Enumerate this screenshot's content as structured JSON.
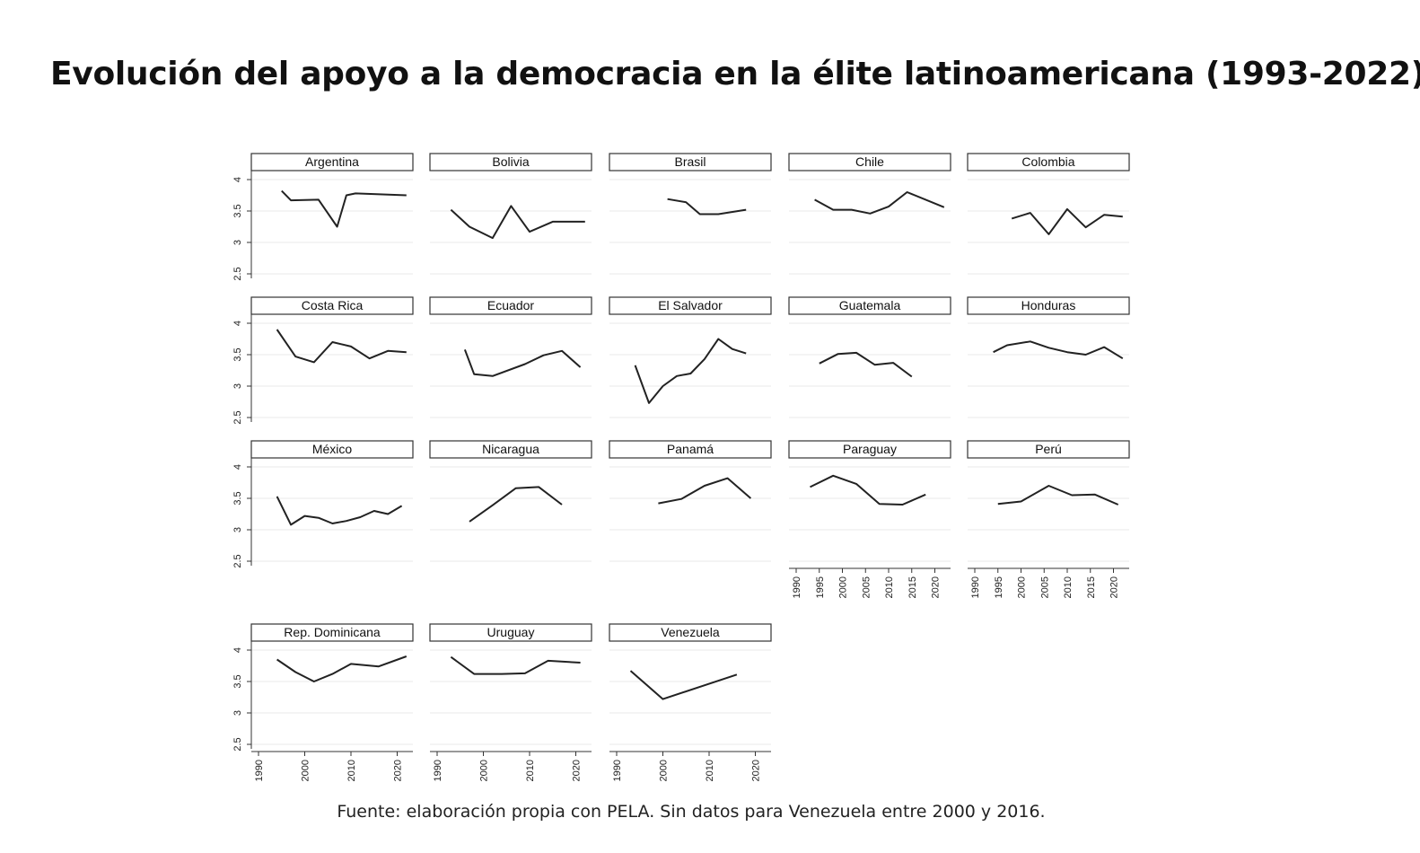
{
  "title": "Evolución del apoyo a la democracia en la élite latinoamericana (1993-2022)",
  "source_note": "Fuente: elaboración propia con PELA. Sin datos para Venezuela entre 2000 y 2016.",
  "chart_data": {
    "type": "line",
    "layout": "small-multiples",
    "xlim": [
      1988,
      2025
    ],
    "ylim": [
      2.5,
      4.1
    ],
    "x_ticks": [
      1990,
      2000,
      2010,
      2020
    ],
    "x_ticks_fine": [
      1990,
      1995,
      2000,
      2005,
      2010,
      2015,
      2020
    ],
    "y_ticks": [
      2.5,
      3,
      3.5,
      4
    ],
    "y_tick_labels": [
      "2.5",
      "3",
      "3.5",
      "4"
    ],
    "x_tick_labels": [
      "1990",
      "2000",
      "2010",
      "2020"
    ],
    "x_tick_labels_fine": [
      "1990",
      "1995",
      "2000",
      "2005",
      "2010",
      "2015",
      "2020"
    ],
    "grid": true,
    "line_color": "#222222",
    "panels": [
      {
        "name": "Argentina",
        "x": [
          1995,
          1997,
          2003,
          2007,
          2009,
          2011,
          2022
        ],
        "y": [
          3.82,
          3.67,
          3.68,
          3.25,
          3.75,
          3.78,
          3.75
        ]
      },
      {
        "name": "Bolivia",
        "x": [
          1993,
          1997,
          2002,
          2006,
          2010,
          2015,
          2022
        ],
        "y": [
          3.52,
          3.25,
          3.07,
          3.58,
          3.17,
          3.33,
          3.33
        ]
      },
      {
        "name": "Brasil",
        "x": [
          2001,
          2005,
          2008,
          2012,
          2018
        ],
        "y": [
          3.69,
          3.64,
          3.45,
          3.45,
          3.52
        ]
      },
      {
        "name": "Chile",
        "x": [
          1994,
          1998,
          2002,
          2006,
          2010,
          2014,
          2022
        ],
        "y": [
          3.68,
          3.52,
          3.52,
          3.46,
          3.57,
          3.8,
          3.56
        ]
      },
      {
        "name": "Colombia",
        "x": [
          1998,
          2002,
          2006,
          2010,
          2014,
          2018,
          2022
        ],
        "y": [
          3.38,
          3.47,
          3.13,
          3.53,
          3.24,
          3.44,
          3.41
        ]
      },
      {
        "name": "Costa Rica",
        "x": [
          1994,
          1998,
          2002,
          2006,
          2010,
          2014,
          2018,
          2022
        ],
        "y": [
          3.9,
          3.47,
          3.38,
          3.7,
          3.63,
          3.44,
          3.56,
          3.54
        ]
      },
      {
        "name": "Ecuador",
        "x": [
          1996,
          1998,
          2002,
          2009,
          2013,
          2017,
          2021
        ],
        "y": [
          3.58,
          3.19,
          3.16,
          3.35,
          3.49,
          3.56,
          3.3
        ]
      },
      {
        "name": "El Salvador",
        "x": [
          1994,
          1997,
          2000,
          2003,
          2006,
          2009,
          2012,
          2015,
          2018
        ],
        "y": [
          3.33,
          2.73,
          3.0,
          3.16,
          3.2,
          3.43,
          3.75,
          3.59,
          3.52
        ]
      },
      {
        "name": "Guatemala",
        "x": [
          1995,
          1999,
          2003,
          2007,
          2011,
          2015
        ],
        "y": [
          3.36,
          3.51,
          3.53,
          3.34,
          3.37,
          3.15
        ]
      },
      {
        "name": "Honduras",
        "x": [
          1994,
          1997,
          2002,
          2006,
          2010,
          2014,
          2018,
          2022
        ],
        "y": [
          3.54,
          3.65,
          3.71,
          3.61,
          3.54,
          3.5,
          3.62,
          3.44
        ]
      },
      {
        "name": "México",
        "x": [
          1994,
          1997,
          2000,
          2003,
          2006,
          2009,
          2012,
          2015,
          2018,
          2021
        ],
        "y": [
          3.53,
          3.08,
          3.22,
          3.19,
          3.1,
          3.14,
          3.2,
          3.3,
          3.25,
          3.38
        ]
      },
      {
        "name": "Nicaragua",
        "x": [
          1997,
          2002,
          2007,
          2012,
          2017
        ],
        "y": [
          3.13,
          3.39,
          3.66,
          3.68,
          3.4
        ]
      },
      {
        "name": "Panamá",
        "x": [
          1999,
          2004,
          2009,
          2014,
          2019
        ],
        "y": [
          3.42,
          3.49,
          3.7,
          3.82,
          3.5
        ]
      },
      {
        "name": "Paraguay",
        "x": [
          1993,
          1998,
          2003,
          2008,
          2013,
          2018
        ],
        "y": [
          3.68,
          3.86,
          3.73,
          3.41,
          3.4,
          3.56
        ]
      },
      {
        "name": "Perú",
        "x": [
          1995,
          2000,
          2006,
          2011,
          2016,
          2021
        ],
        "y": [
          3.41,
          3.45,
          3.7,
          3.55,
          3.56,
          3.4
        ]
      },
      {
        "name": "Rep. Dominicana",
        "x": [
          1994,
          1998,
          2002,
          2006,
          2010,
          2016,
          2022
        ],
        "y": [
          3.85,
          3.65,
          3.5,
          3.62,
          3.78,
          3.74,
          3.9
        ]
      },
      {
        "name": "Uruguay",
        "x": [
          1993,
          1998,
          2004,
          2009,
          2014,
          2021
        ],
        "y": [
          3.89,
          3.62,
          3.62,
          3.63,
          3.83,
          3.8
        ]
      },
      {
        "name": "Venezuela",
        "x": [
          1993,
          2000,
          2016
        ],
        "y": [
          3.67,
          3.22,
          3.61
        ]
      }
    ]
  }
}
